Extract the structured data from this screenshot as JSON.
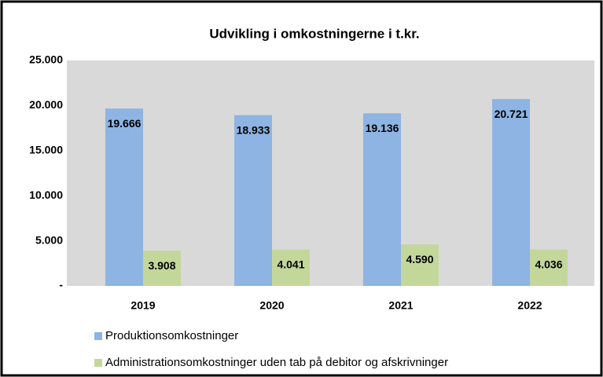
{
  "chart_data": {
    "type": "bar",
    "title": "Udvikling i omkostningerne i t.kr.",
    "categories": [
      "2019",
      "2020",
      "2021",
      "2022"
    ],
    "series": [
      {
        "name": "Produktionsomkostninger",
        "color": "#8db4e2",
        "values": [
          19666,
          18933,
          19136,
          20721
        ],
        "value_labels": [
          "19.666",
          "18.933",
          "19.136",
          "20.721"
        ]
      },
      {
        "name": "Administrationsomkostninger uden tab på debitor og afskrivninger",
        "color": "#c4d79b",
        "values": [
          3908,
          4041,
          4590,
          4036
        ],
        "value_labels": [
          "3.908",
          "4.041",
          "4.590",
          "4.036"
        ]
      }
    ],
    "ylim": [
      0,
      25000
    ],
    "yticks": [
      {
        "value": 0,
        "label": "-"
      },
      {
        "value": 5000,
        "label": "5.000"
      },
      {
        "value": 10000,
        "label": "10.000"
      },
      {
        "value": 15000,
        "label": "15.000"
      },
      {
        "value": 20000,
        "label": "20.000"
      },
      {
        "value": 25000,
        "label": "25.000"
      }
    ],
    "plot_background": "#d9d9d9",
    "grid": false
  }
}
